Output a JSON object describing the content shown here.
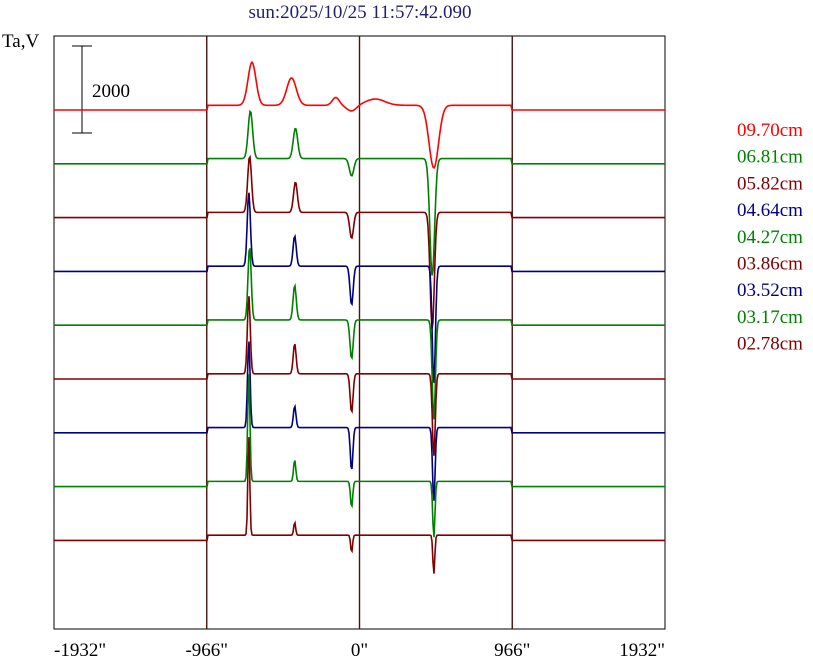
{
  "title": "sun:2025/10/25 11:57:42.090",
  "chart_data": {
    "type": "line",
    "ylabel": "Ta,V",
    "scale_bar_label": "2000",
    "scale_bar_value": 2000,
    "x_ticks": [
      -1932,
      -966,
      0,
      966,
      1932
    ],
    "x_tick_labels": [
      "-1932\"",
      "-966\"",
      "0\"",
      "966\"",
      "1932\""
    ],
    "xlim": [
      -1932,
      1932
    ],
    "vlines": [
      -966,
      0,
      966
    ],
    "series": [
      {
        "name": "09.70cm",
        "color": "#ff0000",
        "offset": 0,
        "amp": 0.9,
        "features": [
          [
            -680,
            25,
            1100
          ],
          [
            -430,
            30,
            700
          ],
          [
            -150,
            22,
            200
          ],
          [
            -50,
            30,
            -150
          ],
          [
            100,
            60,
            160
          ],
          [
            470,
            30,
            -1600
          ]
        ]
      },
      {
        "name": "06.81cm",
        "color": "#008000",
        "offset": 1,
        "amp": 1,
        "features": [
          [
            -690,
            14,
            1100
          ],
          [
            -405,
            14,
            700
          ],
          [
            -50,
            14,
            -400
          ],
          [
            460,
            15,
            -2700
          ]
        ]
      },
      {
        "name": "05.82cm",
        "color": "#800000",
        "offset": 2,
        "amp": 1,
        "features": [
          [
            -695,
            12,
            1300
          ],
          [
            -405,
            12,
            700
          ],
          [
            -50,
            12,
            -600
          ],
          [
            460,
            13,
            -2700
          ]
        ]
      },
      {
        "name": "04.64cm",
        "color": "#000080",
        "offset": 3,
        "amp": 1,
        "features": [
          [
            -700,
            10,
            1700
          ],
          [
            -410,
            10,
            700
          ],
          [
            -50,
            10,
            -900
          ],
          [
            470,
            10,
            -2700
          ]
        ]
      },
      {
        "name": "04.27cm",
        "color": "#008000",
        "offset": 4,
        "amp": 1,
        "features": [
          [
            -695,
            10,
            1700
          ],
          [
            -410,
            10,
            800
          ],
          [
            -50,
            10,
            -900
          ],
          [
            470,
            10,
            -2300
          ]
        ]
      },
      {
        "name": "03.86cm",
        "color": "#800000",
        "offset": 5,
        "amp": 1,
        "features": [
          [
            -700,
            9,
            1800
          ],
          [
            -410,
            9,
            700
          ],
          [
            -50,
            9,
            -900
          ],
          [
            470,
            9,
            -1900
          ]
        ]
      },
      {
        "name": "03.52cm",
        "color": "#000080",
        "offset": 6,
        "amp": 1,
        "features": [
          [
            -700,
            8,
            2000
          ],
          [
            -410,
            8,
            500
          ],
          [
            -50,
            8,
            -1000
          ],
          [
            470,
            8,
            -1700
          ]
        ]
      },
      {
        "name": "03.17cm",
        "color": "#008000",
        "offset": 7,
        "amp": 1,
        "features": [
          [
            -700,
            7,
            2500
          ],
          [
            -410,
            7,
            500
          ],
          [
            -50,
            7,
            -600
          ],
          [
            470,
            7,
            -1300
          ]
        ]
      },
      {
        "name": "02.78cm",
        "color": "#800000",
        "offset": 8,
        "amp": 1,
        "features": [
          [
            -700,
            6,
            2300
          ],
          [
            -410,
            6,
            300
          ],
          [
            -50,
            6,
            -400
          ],
          [
            470,
            6,
            -900
          ]
        ]
      }
    ]
  }
}
